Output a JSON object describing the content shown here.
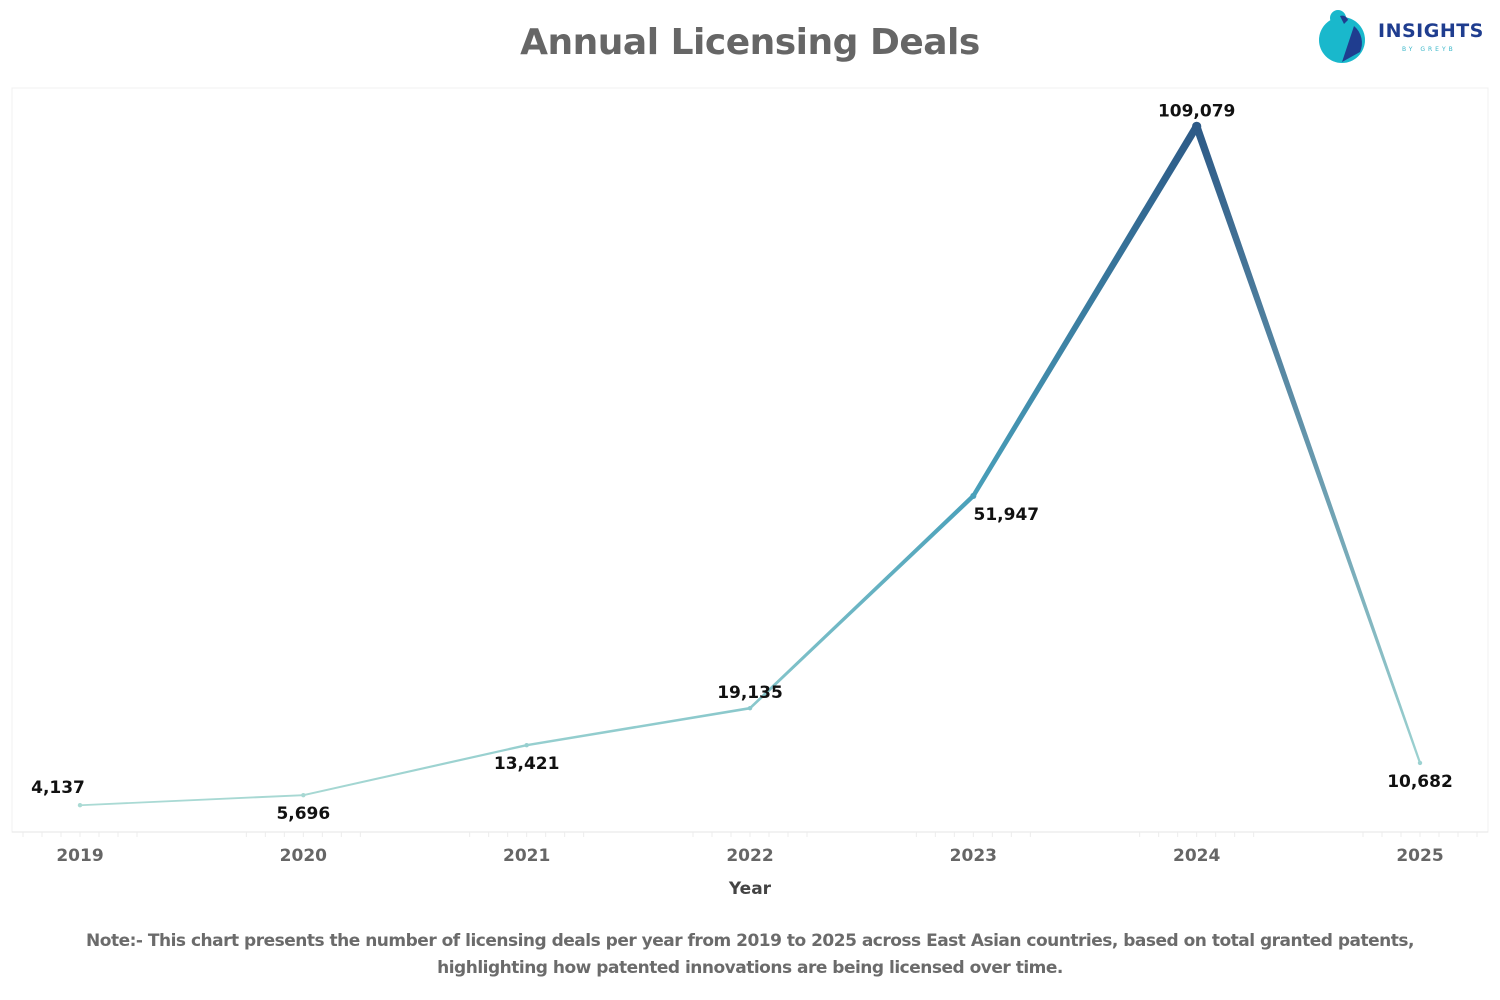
{
  "header": {
    "title": "Annual Licensing Deals",
    "logo_text": "INSIGHTS",
    "logo_subtext": "BY GREYB"
  },
  "note": {
    "line1": "Note:- This chart presents the number of licensing deals per year from 2019 to 2025 across East Asian countries, based on total granted patents,",
    "line2": "highlighting how patented innovations are being licensed over time."
  },
  "chart_data": {
    "type": "line",
    "title": "Annual Licensing Deals",
    "xlabel": "Year",
    "ylabel": "",
    "categories": [
      "2019",
      "2020",
      "2021",
      "2022",
      "2023",
      "2024",
      "2025"
    ],
    "values": [
      4137,
      5696,
      13421,
      19135,
      51947,
      109079,
      10682
    ],
    "value_labels": [
      "4,137",
      "5,696",
      "13,421",
      "19,135",
      "51,947",
      "109,079",
      "10,682"
    ],
    "label_positions": [
      "above-left",
      "below",
      "below",
      "above",
      "below",
      "above",
      "below"
    ],
    "ylim": [
      0,
      115000
    ],
    "grid": false,
    "legend": "none",
    "color_scale": {
      "low": "#a8d8d0",
      "mid": "#4aa3bd",
      "high": "#2d5a87"
    }
  }
}
